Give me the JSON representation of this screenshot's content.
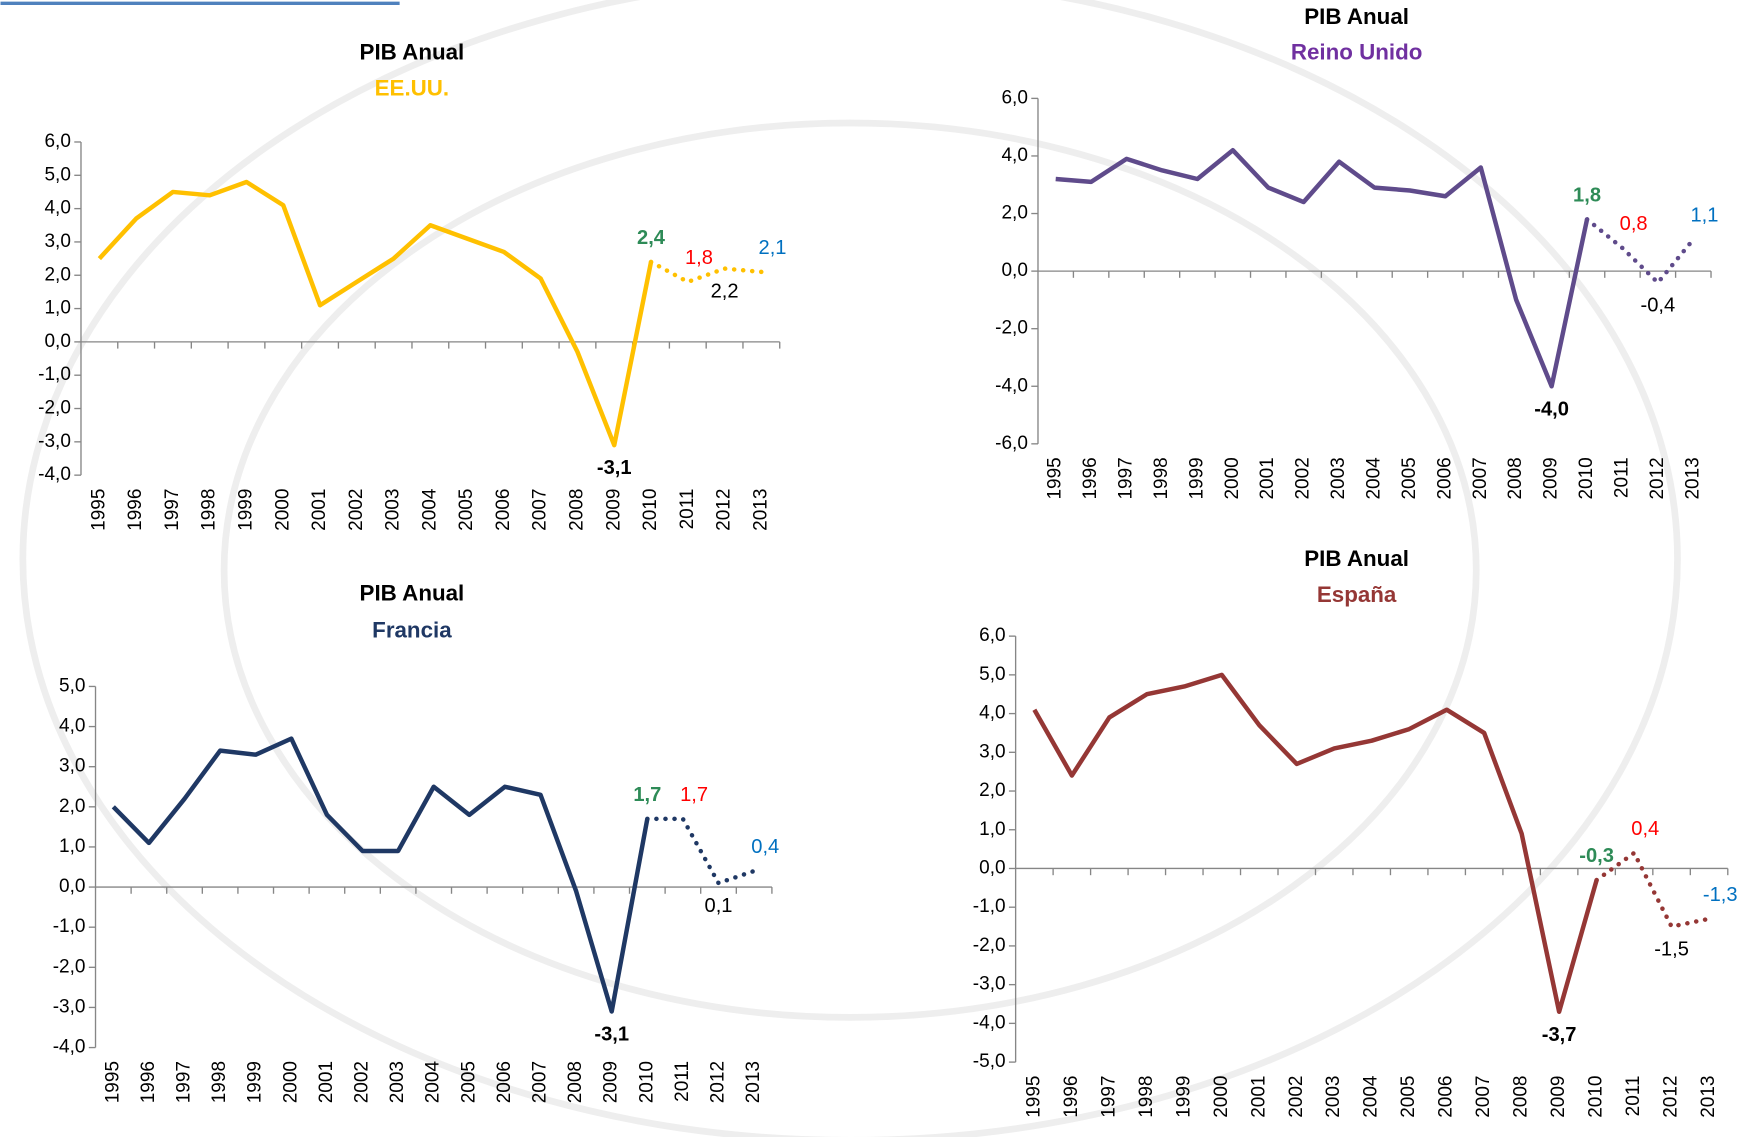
{
  "chart_data": [
    {
      "type": "line",
      "title": "PIB Anual",
      "subtitle": "EE.UU.",
      "subtitle_color": "#ffc000",
      "categories": [
        "1995",
        "1996",
        "1997",
        "1998",
        "1999",
        "2000",
        "2001",
        "2002",
        "2003",
        "2004",
        "2005",
        "2006",
        "2007",
        "2008",
        "2009",
        "2010",
        "2011",
        "2012",
        "2013"
      ],
      "dotted_from": "2010",
      "ylim": [
        -4,
        6
      ],
      "yticks": [
        {
          "value": -4,
          "label": "-4,0"
        },
        {
          "value": -3,
          "label": "-3,0"
        },
        {
          "value": -2,
          "label": "-2,0"
        },
        {
          "value": -1,
          "label": "-1,0"
        },
        {
          "value": 0,
          "label": "0,0"
        },
        {
          "value": 1,
          "label": "1,0"
        },
        {
          "value": 2,
          "label": "2,0"
        },
        {
          "value": 3,
          "label": "3,0"
        },
        {
          "value": 4,
          "label": "4,0"
        },
        {
          "value": 5,
          "label": "5,0"
        },
        {
          "value": 6,
          "label": "6,0"
        }
      ],
      "series": [
        {
          "color": "#ffc000",
          "values": [
            2.5,
            3.7,
            4.5,
            4.4,
            4.8,
            4.1,
            1.1,
            1.8,
            2.5,
            3.5,
            3.1,
            2.7,
            1.9,
            -0.3,
            -3.1,
            2.4,
            1.8,
            2.2,
            2.1
          ],
          "value_labels": [
            null,
            null,
            null,
            null,
            null,
            null,
            null,
            null,
            null,
            null,
            null,
            null,
            null,
            null,
            "-3,1",
            "2,4",
            "1,8",
            "2,2",
            "2,1"
          ],
          "value_label_colors": [
            null,
            null,
            null,
            null,
            null,
            null,
            null,
            null,
            null,
            null,
            null,
            null,
            null,
            null,
            "#000000",
            "#2e8b57",
            "#ff0000",
            "#000000",
            "#0070c0"
          ],
          "value_label_bold": [
            null,
            null,
            null,
            null,
            null,
            null,
            null,
            null,
            null,
            null,
            null,
            null,
            null,
            null,
            true,
            true,
            false,
            false,
            false
          ]
        }
      ]
    },
    {
      "type": "line",
      "title": "PIB Anual",
      "subtitle": "Reino Unido",
      "subtitle_color": "#7030a0",
      "categories": [
        "1995",
        "1996",
        "1997",
        "1998",
        "1999",
        "2000",
        "2001",
        "2002",
        "2003",
        "2004",
        "2005",
        "2006",
        "2007",
        "2008",
        "2009",
        "2010",
        "2011",
        "2012",
        "2013"
      ],
      "dotted_from": "2010",
      "ylim": [
        -6,
        6
      ],
      "yticks": [
        {
          "value": -6,
          "label": "-6,0"
        },
        {
          "value": -4,
          "label": "-4,0"
        },
        {
          "value": -2,
          "label": "-2,0"
        },
        {
          "value": 0,
          "label": "0,0"
        },
        {
          "value": 2,
          "label": "2,0"
        },
        {
          "value": 4,
          "label": "4,0"
        },
        {
          "value": 6,
          "label": "6,0"
        }
      ],
      "series": [
        {
          "color": "#5f4b8b",
          "values": [
            3.2,
            3.1,
            3.9,
            3.5,
            3.2,
            4.2,
            2.9,
            2.4,
            3.8,
            2.9,
            2.8,
            2.6,
            3.6,
            -1.0,
            -4.0,
            1.8,
            0.8,
            -0.4,
            1.1
          ],
          "value_labels": [
            null,
            null,
            null,
            null,
            null,
            null,
            null,
            null,
            null,
            null,
            null,
            null,
            null,
            null,
            "-4,0",
            "1,8",
            "0,8",
            "-0,4",
            "1,1"
          ],
          "value_label_colors": [
            null,
            null,
            null,
            null,
            null,
            null,
            null,
            null,
            null,
            null,
            null,
            null,
            null,
            null,
            "#000000",
            "#2e8b57",
            "#ff0000",
            "#000000",
            "#0070c0"
          ],
          "value_label_bold": [
            null,
            null,
            null,
            null,
            null,
            null,
            null,
            null,
            null,
            null,
            null,
            null,
            null,
            null,
            true,
            true,
            false,
            false,
            false
          ]
        }
      ]
    },
    {
      "type": "line",
      "title": "PIB Anual",
      "subtitle": "Francia",
      "subtitle_color": "#1f3864",
      "categories": [
        "1995",
        "1996",
        "1997",
        "1998",
        "1999",
        "2000",
        "2001",
        "2002",
        "2003",
        "2004",
        "2005",
        "2006",
        "2007",
        "2008",
        "2009",
        "2010",
        "2011",
        "2012",
        "2013"
      ],
      "dotted_from": "2010",
      "ylim": [
        -4,
        5
      ],
      "yticks": [
        {
          "value": -4,
          "label": "-4,0"
        },
        {
          "value": -3,
          "label": "-3,0"
        },
        {
          "value": -2,
          "label": "-2,0"
        },
        {
          "value": -1,
          "label": "-1,0"
        },
        {
          "value": 0,
          "label": "0,0"
        },
        {
          "value": 1,
          "label": "1,0"
        },
        {
          "value": 2,
          "label": "2,0"
        },
        {
          "value": 3,
          "label": "3,0"
        },
        {
          "value": 4,
          "label": "4,0"
        },
        {
          "value": 5,
          "label": "5,0"
        }
      ],
      "series": [
        {
          "color": "#1f3864",
          "values": [
            2.0,
            1.1,
            2.2,
            3.4,
            3.3,
            3.7,
            1.8,
            0.9,
            0.9,
            2.5,
            1.8,
            2.5,
            2.3,
            -0.1,
            -3.1,
            1.7,
            1.7,
            0.1,
            0.4
          ],
          "value_labels": [
            null,
            null,
            null,
            null,
            null,
            null,
            null,
            null,
            null,
            null,
            null,
            null,
            null,
            null,
            "-3,1",
            "1,7",
            "1,7",
            "0,1",
            "0,4"
          ],
          "value_label_colors": [
            null,
            null,
            null,
            null,
            null,
            null,
            null,
            null,
            null,
            null,
            null,
            null,
            null,
            null,
            "#000000",
            "#2e8b57",
            "#ff0000",
            "#000000",
            "#0070c0"
          ],
          "value_label_bold": [
            null,
            null,
            null,
            null,
            null,
            null,
            null,
            null,
            null,
            null,
            null,
            null,
            null,
            null,
            true,
            true,
            false,
            false,
            false
          ]
        }
      ]
    },
    {
      "type": "line",
      "title": "PIB Anual",
      "subtitle": "España",
      "subtitle_color": "#953735",
      "categories": [
        "1995",
        "1996",
        "1997",
        "1998",
        "1999",
        "2000",
        "2001",
        "2002",
        "2003",
        "2004",
        "2005",
        "2006",
        "2007",
        "2008",
        "2009",
        "2010",
        "2011",
        "2012",
        "2013"
      ],
      "dotted_from": "2010",
      "ylim": [
        -5,
        6
      ],
      "yticks": [
        {
          "value": -5,
          "label": "-5,0"
        },
        {
          "value": -4,
          "label": "-4,0"
        },
        {
          "value": -3,
          "label": "-3,0"
        },
        {
          "value": -2,
          "label": "-2,0"
        },
        {
          "value": -1,
          "label": "-1,0"
        },
        {
          "value": 0,
          "label": "0,0"
        },
        {
          "value": 1,
          "label": "1,0"
        },
        {
          "value": 2,
          "label": "2,0"
        },
        {
          "value": 3,
          "label": "3,0"
        },
        {
          "value": 4,
          "label": "4,0"
        },
        {
          "value": 5,
          "label": "5,0"
        },
        {
          "value": 6,
          "label": "6,0"
        }
      ],
      "series": [
        {
          "color": "#953735",
          "values": [
            4.1,
            2.4,
            3.9,
            4.5,
            4.7,
            5.0,
            3.7,
            2.7,
            3.1,
            3.3,
            3.6,
            4.1,
            3.5,
            0.9,
            -3.7,
            -0.3,
            0.4,
            -1.5,
            -1.3
          ],
          "value_labels": [
            null,
            null,
            null,
            null,
            null,
            null,
            null,
            null,
            null,
            null,
            null,
            null,
            null,
            null,
            "-3,7",
            "-0,3",
            "0,4",
            "-1,5",
            "-1,3"
          ],
          "value_label_colors": [
            null,
            null,
            null,
            null,
            null,
            null,
            null,
            null,
            null,
            null,
            null,
            null,
            null,
            null,
            "#000000",
            "#2e8b57",
            "#ff0000",
            "#000000",
            "#0070c0"
          ],
          "value_label_bold": [
            null,
            null,
            null,
            null,
            null,
            null,
            null,
            null,
            null,
            null,
            null,
            null,
            null,
            null,
            true,
            true,
            false,
            false,
            false
          ]
        }
      ]
    }
  ]
}
